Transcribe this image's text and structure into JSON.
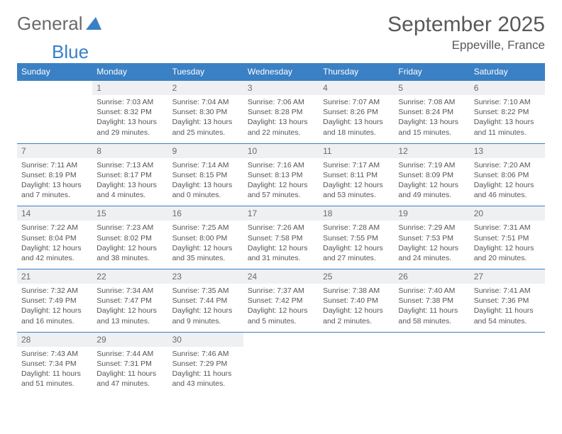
{
  "logo": {
    "text1": "General",
    "text2": "Blue"
  },
  "title": "September 2025",
  "location": "Eppeville, France",
  "colors": {
    "header_bg": "#3a80c4",
    "header_text": "#ffffff",
    "daynum_bg": "#eef0f2",
    "text": "#555555",
    "border": "#3a80c4"
  },
  "dow": [
    "Sunday",
    "Monday",
    "Tuesday",
    "Wednesday",
    "Thursday",
    "Friday",
    "Saturday"
  ],
  "weeks": [
    [
      {
        "n": "",
        "sr": "",
        "ss": "",
        "dl": ""
      },
      {
        "n": "1",
        "sr": "Sunrise: 7:03 AM",
        "ss": "Sunset: 8:32 PM",
        "dl": "Daylight: 13 hours and 29 minutes."
      },
      {
        "n": "2",
        "sr": "Sunrise: 7:04 AM",
        "ss": "Sunset: 8:30 PM",
        "dl": "Daylight: 13 hours and 25 minutes."
      },
      {
        "n": "3",
        "sr": "Sunrise: 7:06 AM",
        "ss": "Sunset: 8:28 PM",
        "dl": "Daylight: 13 hours and 22 minutes."
      },
      {
        "n": "4",
        "sr": "Sunrise: 7:07 AM",
        "ss": "Sunset: 8:26 PM",
        "dl": "Daylight: 13 hours and 18 minutes."
      },
      {
        "n": "5",
        "sr": "Sunrise: 7:08 AM",
        "ss": "Sunset: 8:24 PM",
        "dl": "Daylight: 13 hours and 15 minutes."
      },
      {
        "n": "6",
        "sr": "Sunrise: 7:10 AM",
        "ss": "Sunset: 8:22 PM",
        "dl": "Daylight: 13 hours and 11 minutes."
      }
    ],
    [
      {
        "n": "7",
        "sr": "Sunrise: 7:11 AM",
        "ss": "Sunset: 8:19 PM",
        "dl": "Daylight: 13 hours and 7 minutes."
      },
      {
        "n": "8",
        "sr": "Sunrise: 7:13 AM",
        "ss": "Sunset: 8:17 PM",
        "dl": "Daylight: 13 hours and 4 minutes."
      },
      {
        "n": "9",
        "sr": "Sunrise: 7:14 AM",
        "ss": "Sunset: 8:15 PM",
        "dl": "Daylight: 13 hours and 0 minutes."
      },
      {
        "n": "10",
        "sr": "Sunrise: 7:16 AM",
        "ss": "Sunset: 8:13 PM",
        "dl": "Daylight: 12 hours and 57 minutes."
      },
      {
        "n": "11",
        "sr": "Sunrise: 7:17 AM",
        "ss": "Sunset: 8:11 PM",
        "dl": "Daylight: 12 hours and 53 minutes."
      },
      {
        "n": "12",
        "sr": "Sunrise: 7:19 AM",
        "ss": "Sunset: 8:09 PM",
        "dl": "Daylight: 12 hours and 49 minutes."
      },
      {
        "n": "13",
        "sr": "Sunrise: 7:20 AM",
        "ss": "Sunset: 8:06 PM",
        "dl": "Daylight: 12 hours and 46 minutes."
      }
    ],
    [
      {
        "n": "14",
        "sr": "Sunrise: 7:22 AM",
        "ss": "Sunset: 8:04 PM",
        "dl": "Daylight: 12 hours and 42 minutes."
      },
      {
        "n": "15",
        "sr": "Sunrise: 7:23 AM",
        "ss": "Sunset: 8:02 PM",
        "dl": "Daylight: 12 hours and 38 minutes."
      },
      {
        "n": "16",
        "sr": "Sunrise: 7:25 AM",
        "ss": "Sunset: 8:00 PM",
        "dl": "Daylight: 12 hours and 35 minutes."
      },
      {
        "n": "17",
        "sr": "Sunrise: 7:26 AM",
        "ss": "Sunset: 7:58 PM",
        "dl": "Daylight: 12 hours and 31 minutes."
      },
      {
        "n": "18",
        "sr": "Sunrise: 7:28 AM",
        "ss": "Sunset: 7:55 PM",
        "dl": "Daylight: 12 hours and 27 minutes."
      },
      {
        "n": "19",
        "sr": "Sunrise: 7:29 AM",
        "ss": "Sunset: 7:53 PM",
        "dl": "Daylight: 12 hours and 24 minutes."
      },
      {
        "n": "20",
        "sr": "Sunrise: 7:31 AM",
        "ss": "Sunset: 7:51 PM",
        "dl": "Daylight: 12 hours and 20 minutes."
      }
    ],
    [
      {
        "n": "21",
        "sr": "Sunrise: 7:32 AM",
        "ss": "Sunset: 7:49 PM",
        "dl": "Daylight: 12 hours and 16 minutes."
      },
      {
        "n": "22",
        "sr": "Sunrise: 7:34 AM",
        "ss": "Sunset: 7:47 PM",
        "dl": "Daylight: 12 hours and 13 minutes."
      },
      {
        "n": "23",
        "sr": "Sunrise: 7:35 AM",
        "ss": "Sunset: 7:44 PM",
        "dl": "Daylight: 12 hours and 9 minutes."
      },
      {
        "n": "24",
        "sr": "Sunrise: 7:37 AM",
        "ss": "Sunset: 7:42 PM",
        "dl": "Daylight: 12 hours and 5 minutes."
      },
      {
        "n": "25",
        "sr": "Sunrise: 7:38 AM",
        "ss": "Sunset: 7:40 PM",
        "dl": "Daylight: 12 hours and 2 minutes."
      },
      {
        "n": "26",
        "sr": "Sunrise: 7:40 AM",
        "ss": "Sunset: 7:38 PM",
        "dl": "Daylight: 11 hours and 58 minutes."
      },
      {
        "n": "27",
        "sr": "Sunrise: 7:41 AM",
        "ss": "Sunset: 7:36 PM",
        "dl": "Daylight: 11 hours and 54 minutes."
      }
    ],
    [
      {
        "n": "28",
        "sr": "Sunrise: 7:43 AM",
        "ss": "Sunset: 7:34 PM",
        "dl": "Daylight: 11 hours and 51 minutes."
      },
      {
        "n": "29",
        "sr": "Sunrise: 7:44 AM",
        "ss": "Sunset: 7:31 PM",
        "dl": "Daylight: 11 hours and 47 minutes."
      },
      {
        "n": "30",
        "sr": "Sunrise: 7:46 AM",
        "ss": "Sunset: 7:29 PM",
        "dl": "Daylight: 11 hours and 43 minutes."
      },
      {
        "n": "",
        "sr": "",
        "ss": "",
        "dl": ""
      },
      {
        "n": "",
        "sr": "",
        "ss": "",
        "dl": ""
      },
      {
        "n": "",
        "sr": "",
        "ss": "",
        "dl": ""
      },
      {
        "n": "",
        "sr": "",
        "ss": "",
        "dl": ""
      }
    ]
  ]
}
